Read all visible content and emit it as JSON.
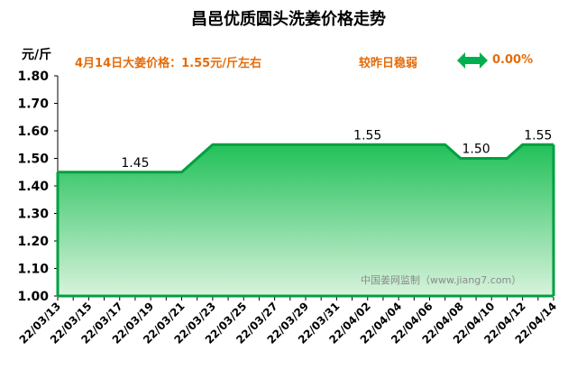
{
  "title": "昌邑优质圆头洗姜价格走势",
  "y_unit": "元/斤",
  "price_notice": "4月14日大姜价格：1.55元/斤左右",
  "compare_label": "较昨日稳弱",
  "change_value": "0.00%",
  "watermark": "中国姜网监制（www.jiang7.com）",
  "colors": {
    "accent": "#e46c0a",
    "line": "#00a040",
    "fill_top": "#22c05a",
    "fill_bottom": "#d8f3dc",
    "arrow": "#00b050"
  },
  "icons": {
    "change_indicator": "double-arrow-icon"
  },
  "chart_data": {
    "type": "area",
    "title": "昌邑优质圆头洗姜价格走势",
    "ylabel": "元/斤",
    "ylim": [
      1.0,
      1.8
    ],
    "yticks": [
      "1.00",
      "1.10",
      "1.20",
      "1.30",
      "1.40",
      "1.50",
      "1.60",
      "1.70",
      "1.80"
    ],
    "grid": false,
    "x": [
      "22/03/13",
      "22/03/14",
      "22/03/15",
      "22/03/16",
      "22/03/17",
      "22/03/18",
      "22/03/19",
      "22/03/20",
      "22/03/21",
      "22/03/22",
      "22/03/23",
      "22/03/24",
      "22/03/25",
      "22/03/26",
      "22/03/27",
      "22/03/28",
      "22/03/29",
      "22/03/30",
      "22/03/31",
      "22/04/01",
      "22/04/02",
      "22/04/03",
      "22/04/04",
      "22/04/05",
      "22/04/06",
      "22/04/07",
      "22/04/08",
      "22/04/09",
      "22/04/10",
      "22/04/11",
      "22/04/12",
      "22/04/13",
      "22/04/14"
    ],
    "xtick_labels": [
      "22/03/13",
      "22/03/15",
      "22/03/17",
      "22/03/19",
      "22/03/21",
      "22/03/23",
      "22/03/25",
      "22/03/27",
      "22/03/29",
      "22/03/31",
      "22/04/02",
      "22/04/04",
      "22/04/06",
      "22/04/08",
      "22/04/10",
      "22/04/12",
      "22/04/14"
    ],
    "values": [
      1.45,
      1.45,
      1.45,
      1.45,
      1.45,
      1.45,
      1.45,
      1.45,
      1.45,
      1.5,
      1.55,
      1.55,
      1.55,
      1.55,
      1.55,
      1.55,
      1.55,
      1.55,
      1.55,
      1.55,
      1.55,
      1.55,
      1.55,
      1.55,
      1.55,
      1.55,
      1.5,
      1.5,
      1.5,
      1.5,
      1.55,
      1.55,
      1.55
    ],
    "annotations": [
      {
        "x": "22/03/18",
        "text": "1.45"
      },
      {
        "x": "22/04/02",
        "text": "1.55"
      },
      {
        "x": "22/04/09",
        "text": "1.50"
      },
      {
        "x": "22/04/13",
        "text": "1.55"
      }
    ]
  }
}
